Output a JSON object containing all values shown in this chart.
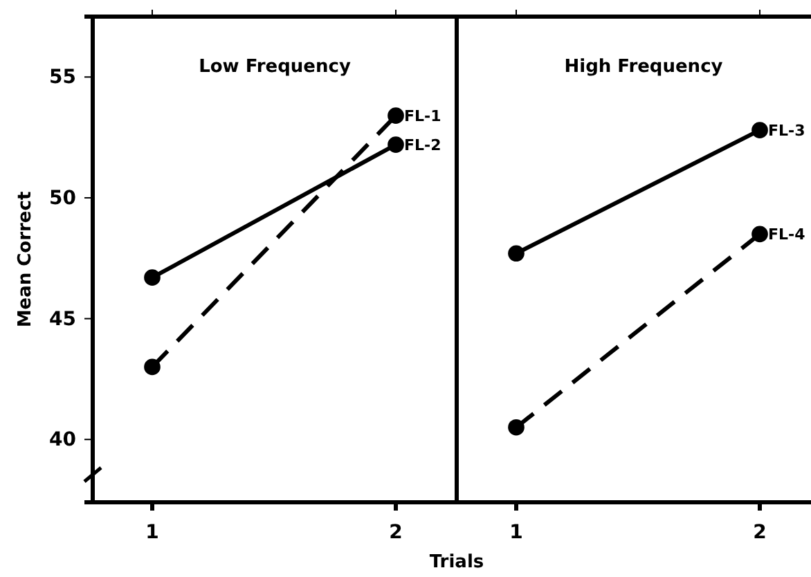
{
  "chart_data": [
    {
      "type": "line",
      "title": "Low Frequency",
      "ylabel": "Mean Correct",
      "xlabel": "Trials",
      "categories": [
        "1",
        "2"
      ],
      "ylim": [
        37.4,
        57.5
      ],
      "yticks": [
        40,
        45,
        50,
        55
      ],
      "marker": "circle",
      "series": [
        {
          "name": "FL-1",
          "color": "#000000",
          "line_style": "dashed",
          "values": [
            43.0,
            53.4
          ]
        },
        {
          "name": "FL-2",
          "color": "#000000",
          "line_style": "solid",
          "values": [
            46.7,
            52.2
          ]
        }
      ]
    },
    {
      "type": "line",
      "title": "High Frequency",
      "categories": [
        "1",
        "2"
      ],
      "ylim": [
        37.4,
        57.5
      ],
      "tick_labels": "x",
      "marker": "circle",
      "series": [
        {
          "name": "FL-3",
          "color": "#000000",
          "line_style": "solid",
          "values": [
            47.7,
            52.8
          ]
        },
        {
          "name": "FL-4",
          "color": "#000000",
          "line_style": "dashed",
          "values": [
            40.5,
            48.5
          ]
        }
      ]
    }
  ]
}
